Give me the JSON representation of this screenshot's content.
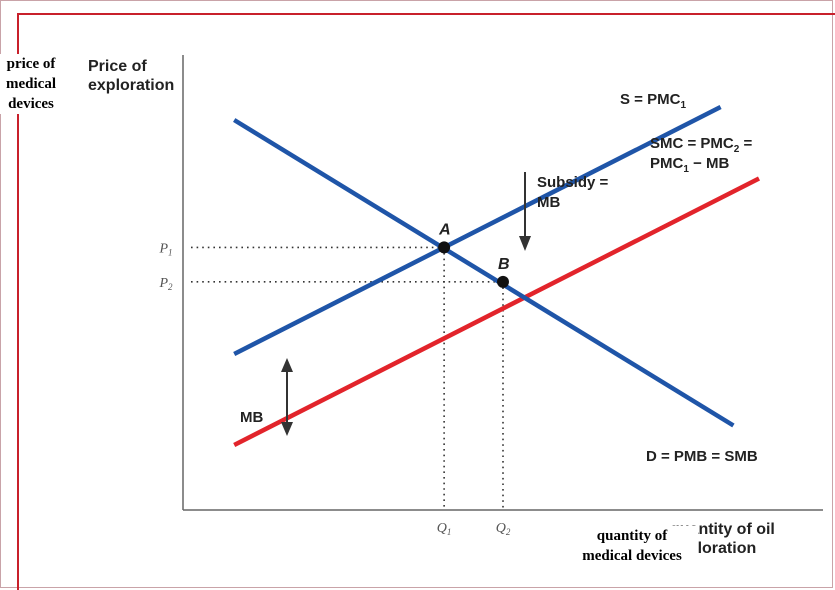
{
  "chart_data": {
    "type": "line",
    "title": "",
    "axes": {
      "y_label_lines": [
        "Price of",
        "exploration"
      ],
      "x_label_lines": [
        "quantity of oil",
        "exploration"
      ],
      "y_ticks": [
        "P1",
        "P2"
      ],
      "x_ticks": [
        "Q1",
        "Q2"
      ]
    },
    "series": [
      {
        "name": "S = PMC1",
        "label_lines": [
          "S = PMC1"
        ],
        "color": "#1f55a8",
        "points": [
          [
            0.4,
            3.4
          ],
          [
            4.2,
            7.2
          ]
        ]
      },
      {
        "name": "SMC = PMC2 = PMC1 − MB",
        "label_lines": [
          "SMC = PMC2 =",
          "PMC1 − MB"
        ],
        "color": "#e2242b",
        "points": [
          [
            0.4,
            2.0
          ],
          [
            4.5,
            6.1
          ]
        ]
      },
      {
        "name": "D = PMB = SMB",
        "label_lines": [
          "D = PMB = SMB"
        ],
        "color": "#1f55a8",
        "points": [
          [
            0.4,
            7.0
          ],
          [
            4.3,
            2.3
          ]
        ]
      }
    ],
    "points": [
      {
        "label": "A",
        "x": 2.04,
        "y": 5.04
      },
      {
        "label": "B",
        "x": 2.5,
        "y": 4.51
      }
    ],
    "annotations": {
      "subsidy_lines": [
        "Subsidy =",
        "MB"
      ],
      "mb_label": "MB"
    },
    "ranges": {
      "x": [
        0,
        5
      ],
      "y": [
        1,
        8
      ]
    },
    "grid": false
  },
  "overlay": {
    "y_label_lines": [
      "price of",
      "medical",
      "devices"
    ],
    "x_label_lines": [
      "quantity of",
      "medical devices"
    ]
  }
}
